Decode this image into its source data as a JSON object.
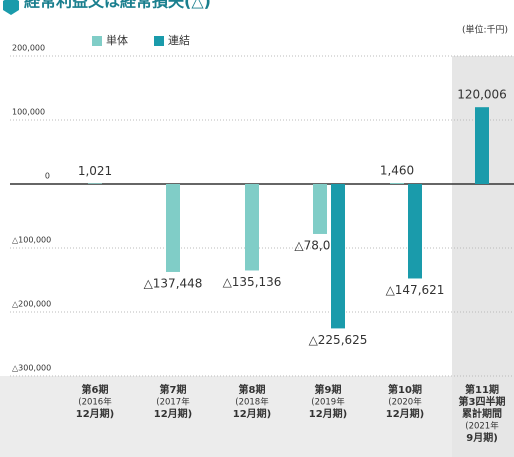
{
  "chart_data": {
    "type": "bar",
    "title": "経常利益又は経常損失(△)",
    "unit": "(単位:千円)",
    "categories": [
      [
        "第6期",
        "(2016年",
        "12月期)"
      ],
      [
        "第7期",
        "(2017年",
        "12月期)"
      ],
      [
        "第8期",
        "(2018年",
        "12月期)"
      ],
      [
        "第9期",
        "(2019年",
        "12月期)"
      ],
      [
        "第10期",
        "(2020年",
        "12月期)"
      ],
      [
        "第11期",
        "第3四半期",
        "累計期間",
        "(2021年",
        "9月期)"
      ]
    ],
    "series": [
      {
        "name": "単体",
        "color": "#80cdc7",
        "values": [
          1021,
          -137448,
          -135136,
          -78079,
          1460,
          null
        ],
        "value_labels": [
          "1,021",
          "△137,448",
          "△135,136",
          "△78,079",
          "1,460",
          null
        ]
      },
      {
        "name": "連結",
        "color": "#1a9bab",
        "values": [
          null,
          null,
          null,
          -225625,
          -147621,
          120006
        ],
        "value_labels": [
          null,
          null,
          null,
          "△225,625",
          "△147,621",
          "120,006"
        ]
      }
    ],
    "ylim": [
      -300000,
      200000
    ],
    "yticks": [
      {
        "value": 200000,
        "label": "200,000"
      },
      {
        "value": 100000,
        "label": "100,000"
      },
      0,
      {
        "value": -100000,
        "label": "△100,000"
      },
      {
        "value": -200000,
        "label": "△200,000"
      },
      {
        "value": -300000,
        "label": "△300,000"
      }
    ],
    "grid": true
  }
}
